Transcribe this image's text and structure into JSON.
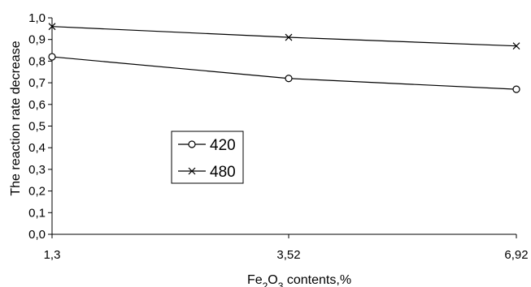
{
  "chart_data": {
    "type": "line",
    "x": [
      "1,3",
      "3,52",
      "6,92"
    ],
    "yticks": [
      "0,0",
      "0,1",
      "0,2",
      "0,3",
      "0,4",
      "0,5",
      "0,6",
      "0,7",
      "0,8",
      "0,9",
      "1,0"
    ],
    "ylim": [
      0,
      1
    ],
    "ylabel": "The reaction rate decrease",
    "xlabel_parts": [
      "Fe",
      "2",
      "O",
      "3",
      " contents,%"
    ],
    "grid": false,
    "legend_position": "center-left",
    "series": [
      {
        "name": "420",
        "marker": "circle",
        "values": [
          0.82,
          0.72,
          0.67
        ]
      },
      {
        "name": "480",
        "marker": "x",
        "values": [
          0.96,
          0.91,
          0.87
        ]
      }
    ]
  }
}
